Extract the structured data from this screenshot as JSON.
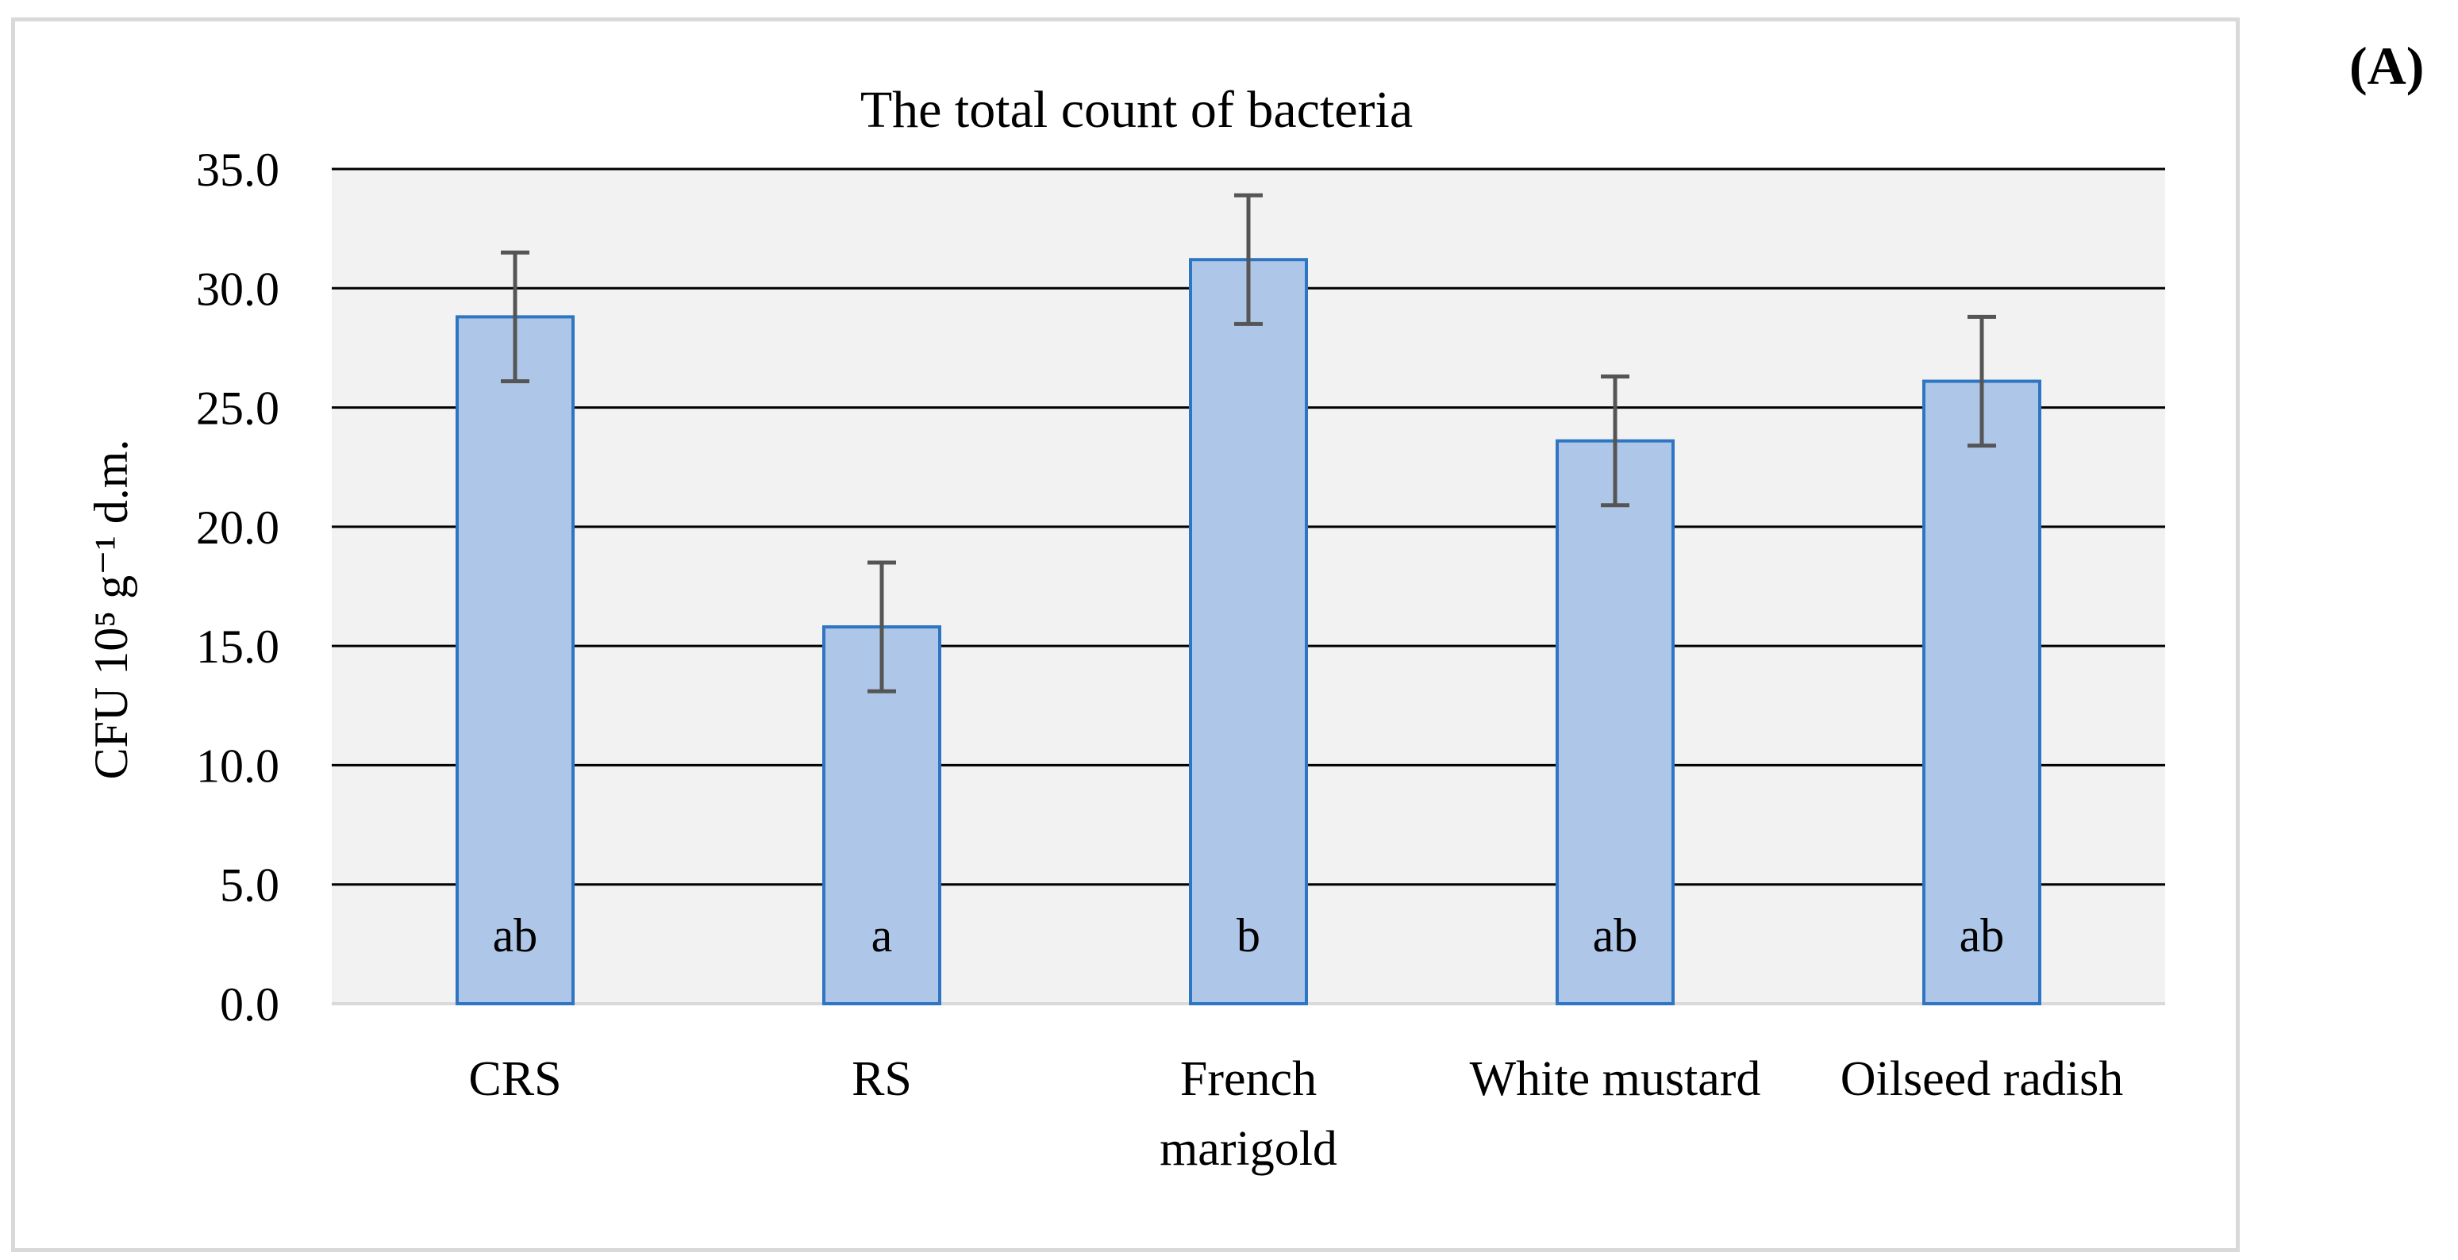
{
  "panel_label": "(A)",
  "chart_data": {
    "type": "bar",
    "title": "The total count of bacteria",
    "ylabel": "CFU 10⁵ g⁻¹ d.m.",
    "xlabel": "",
    "ylim": [
      0,
      35
    ],
    "y_ticks": [
      "0.0",
      "5.0",
      "10.0",
      "15.0",
      "20.0",
      "25.0",
      "30.0",
      "35.0"
    ],
    "grid": true,
    "categories": [
      "CRS",
      "RS",
      "French marigold",
      "White mustard",
      "Oilseed radish"
    ],
    "category_lines": [
      [
        "CRS"
      ],
      [
        "RS"
      ],
      [
        "French",
        "marigold"
      ],
      [
        "White mustard"
      ],
      [
        "Oilseed radish"
      ]
    ],
    "series": [
      {
        "values": [
          28.8,
          15.8,
          31.2,
          23.6,
          26.1
        ],
        "errors": [
          2.7,
          2.7,
          2.7,
          2.7,
          2.7
        ],
        "group_letters": [
          "ab",
          "a",
          "b",
          "ab",
          "ab"
        ]
      }
    ],
    "colors": {
      "bar_fill": "#aec7e8",
      "bar_stroke": "#2e75c2",
      "error_bar": "#555555",
      "plot_bg": "#f2f2f2",
      "gridline": "#000000"
    }
  }
}
